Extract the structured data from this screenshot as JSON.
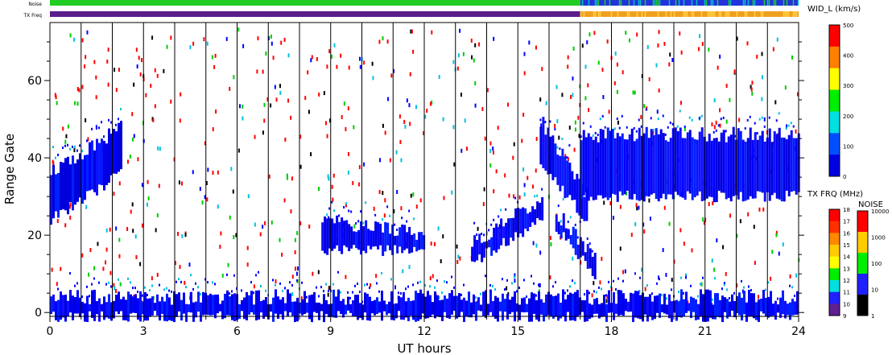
{
  "chart_data": {
    "type": "heatmap",
    "xlabel": "UT hours",
    "ylabel": "Range Gate",
    "xlim": [
      0,
      24
    ],
    "ylim": [
      -1,
      75
    ],
    "x_ticks": [
      0,
      3,
      6,
      9,
      12,
      15,
      18,
      21,
      24
    ],
    "y_ticks": [
      0,
      20,
      40,
      60
    ],
    "grid": "vertical lines every hour",
    "strips": [
      {
        "label": "Noise",
        "segments": [
          {
            "x0": 0,
            "x1": 17,
            "color": "#22cc22"
          },
          {
            "x0": 17,
            "x1": 24,
            "color": "#2233dd"
          }
        ]
      },
      {
        "label": "TX Freq",
        "segments": [
          {
            "x0": 0,
            "x1": 17,
            "color": "#5a1e8a"
          },
          {
            "x0": 17,
            "x1": 24,
            "color": "#f0a020"
          }
        ]
      }
    ],
    "colorbars": [
      {
        "title": "WID_L (km/s)",
        "ticks": [
          "500",
          "400",
          "300",
          "200",
          "100",
          "0"
        ],
        "colors": [
          "#ff0000",
          "#ff8000",
          "#ffff00",
          "#00ee00",
          "#00e0e0",
          "#0050ff",
          "#0000e0"
        ]
      },
      {
        "title": "TX FRQ (MHz)",
        "ticks": [
          "18",
          "17",
          "16",
          "15",
          "14",
          "13",
          "12",
          "11",
          "10",
          "9"
        ],
        "colors": [
          "#ff0000",
          "#ff3000",
          "#ff8800",
          "#ffcc00",
          "#ffff00",
          "#00ee00",
          "#00e0e0",
          "#2020ff",
          "#602090"
        ]
      },
      {
        "title": "NOISE",
        "ticks": [
          "10000",
          "1000",
          "100",
          "10",
          "1"
        ],
        "colors": [
          "#ff0000",
          "#ffcc00",
          "#00ee00",
          "#2020ff",
          "#000000"
        ]
      }
    ],
    "regions": [
      {
        "name": "early evening echoes",
        "x0": 0.0,
        "x1": 2.3,
        "y0_start": 24,
        "y1_start": 36,
        "y0_end": 36,
        "y1_end": 48
      },
      {
        "name": "mid-range patch",
        "x0": 8.7,
        "x1": 12.0,
        "y0_start": 16,
        "y1_start": 24,
        "y0_end": 16,
        "y1_end": 20
      },
      {
        "name": "rising arc",
        "x0": 13.5,
        "x1": 15.8,
        "y0_start": 13,
        "y1_start": 18,
        "y0_end": 24,
        "y1_end": 30
      },
      {
        "name": "descending band",
        "x0": 15.7,
        "x1": 17.2,
        "y0_start": 38,
        "y1_start": 50,
        "y0_end": 24,
        "y1_end": 30
      },
      {
        "name": "descending tail",
        "x0": 16.2,
        "x1": 17.5,
        "y0_start": 22,
        "y1_start": 26,
        "y0_end": 9,
        "y1_end": 13
      },
      {
        "name": "late wide band",
        "x0": 17.0,
        "x1": 24.0,
        "y0_start": 30,
        "y1_start": 46,
        "y0_end": 30,
        "y1_end": 46
      },
      {
        "name": "near-range ground echoes",
        "x0": 0.0,
        "x1": 24.0,
        "y0_start": -1,
        "y1_start": 4,
        "y0_end": -1,
        "y1_end": 4
      }
    ]
  }
}
